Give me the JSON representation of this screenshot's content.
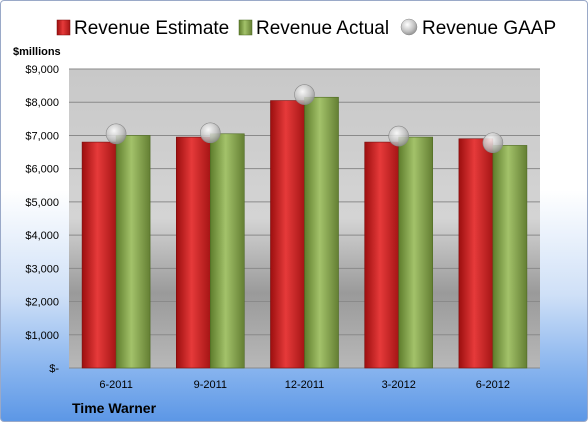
{
  "chart_data": {
    "type": "bar",
    "ylabel": "$millions",
    "company": "Time Warner",
    "categories": [
      "6-2011",
      "9-2011",
      "12-2011",
      "3-2012",
      "6-2012"
    ],
    "series": [
      {
        "name": "Revenue Estimate",
        "kind": "bar",
        "color": "#d42020",
        "values": [
          6800,
          6950,
          8050,
          6800,
          6900
        ]
      },
      {
        "name": "Revenue Actual",
        "kind": "bar",
        "color": "#8cad52",
        "values": [
          7000,
          7050,
          8150,
          6950,
          6700
        ]
      },
      {
        "name": "Revenue GAAP",
        "kind": "marker",
        "color": "#b8b8b8",
        "values": [
          7050,
          7080,
          8230,
          6980,
          6780
        ]
      }
    ],
    "ylim": [
      0,
      9000
    ],
    "yticks": [
      0,
      1000,
      2000,
      3000,
      4000,
      5000,
      6000,
      7000,
      8000,
      9000
    ],
    "ytick_labels": [
      "$-",
      "$1,000",
      "$2,000",
      "$3,000",
      "$4,000",
      "$5,000",
      "$6,000",
      "$7,000",
      "$8,000",
      "$9,000"
    ],
    "grid": true,
    "legend_position": "top"
  }
}
